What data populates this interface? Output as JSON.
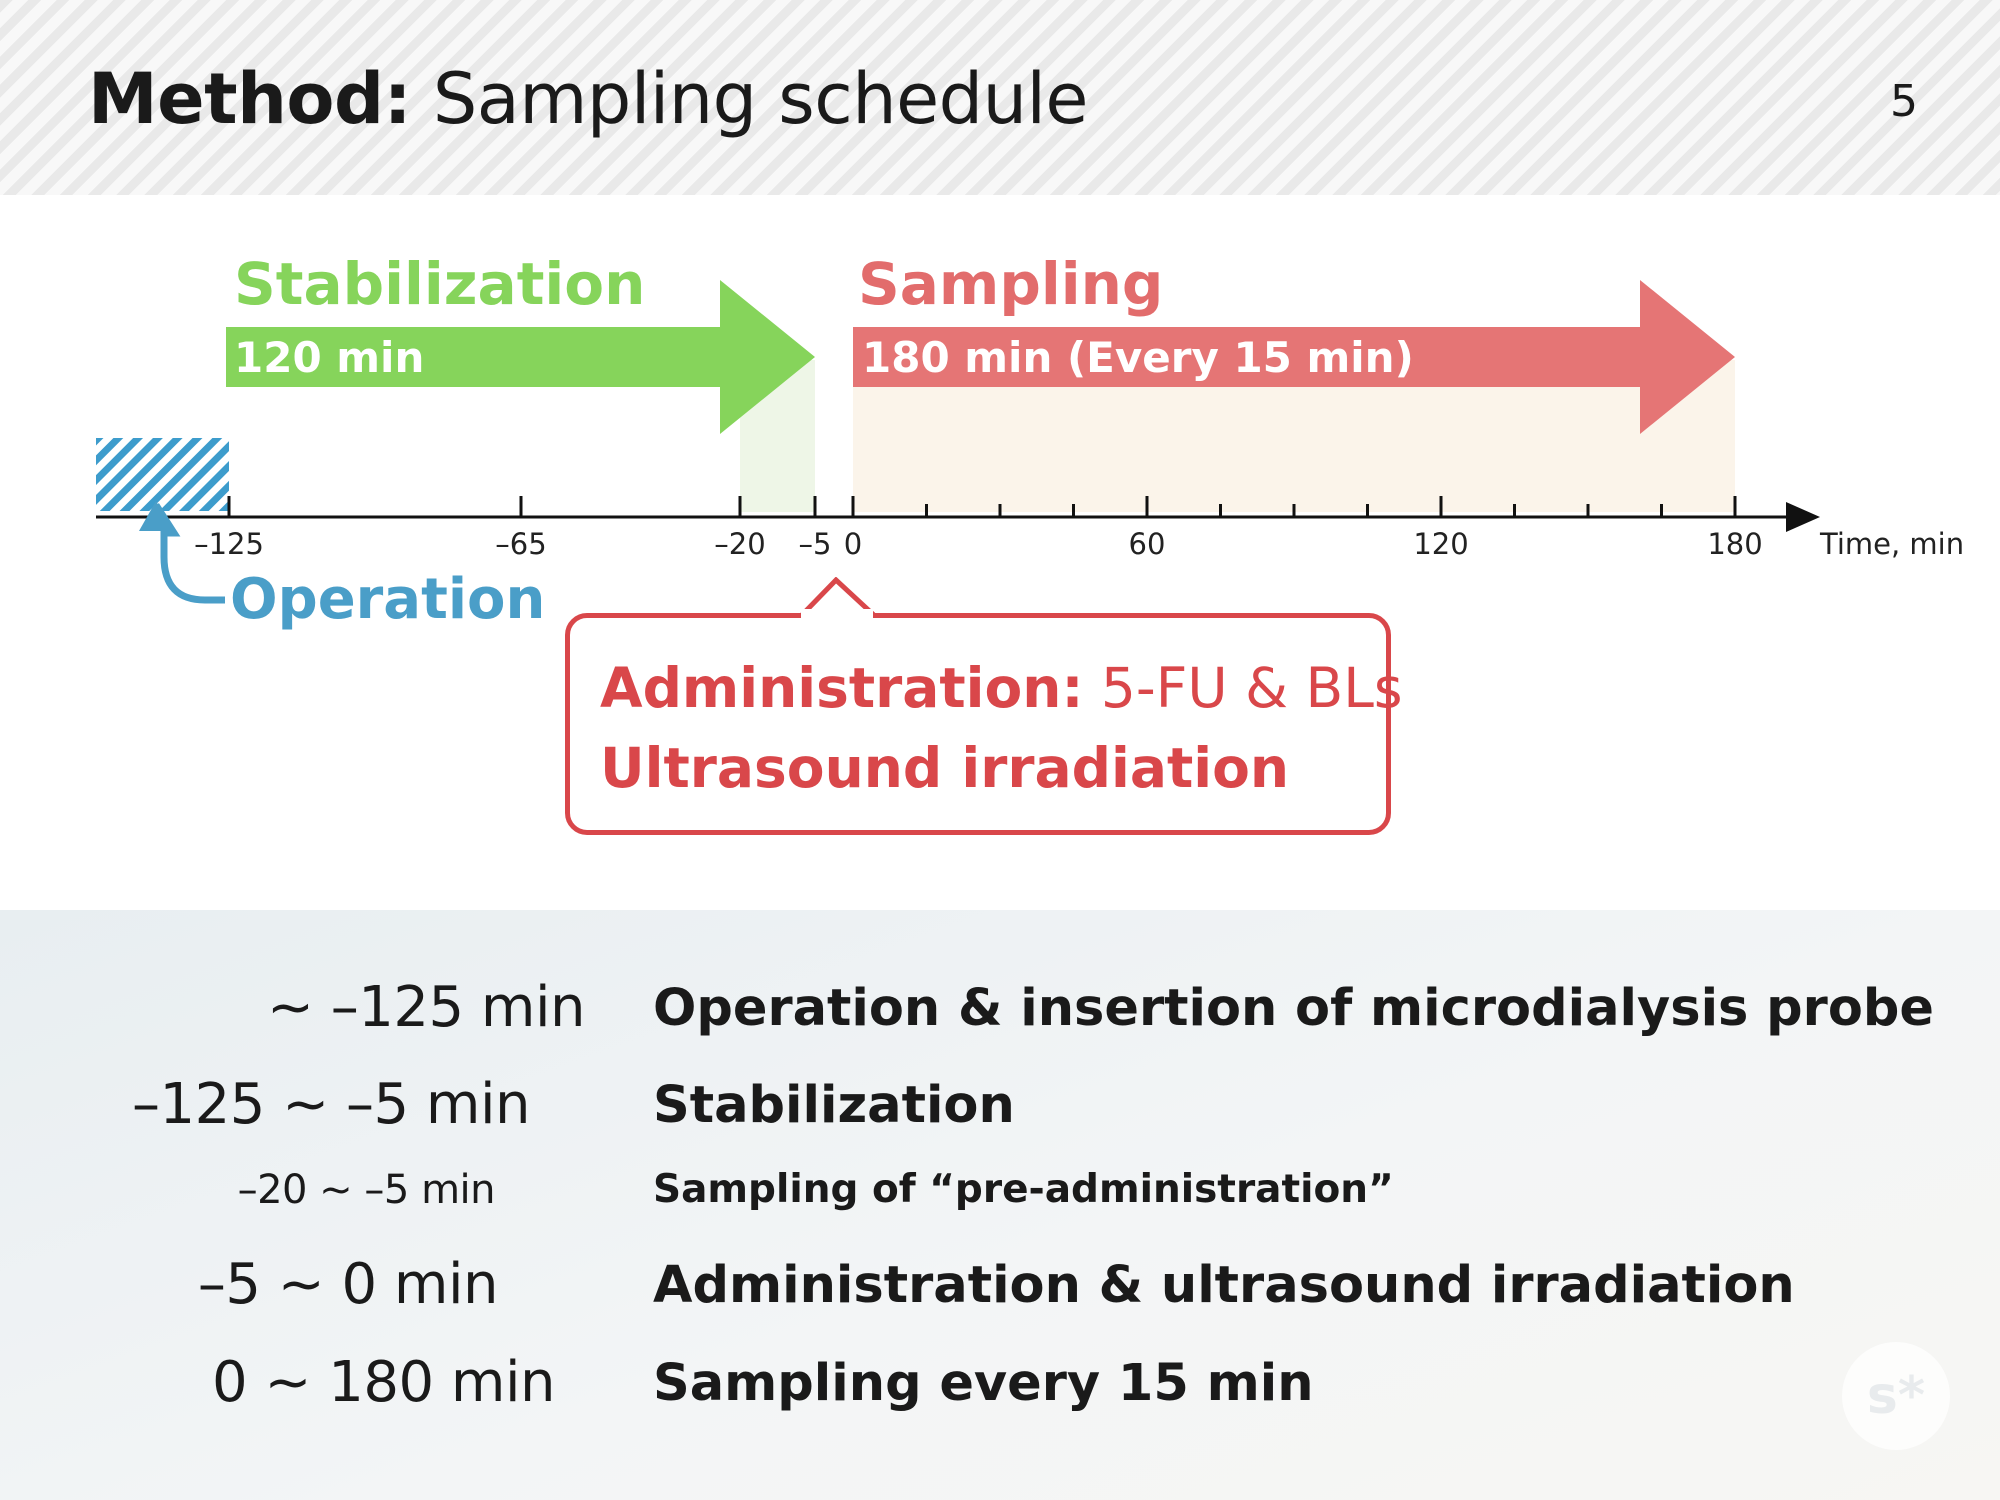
{
  "header": {
    "title_bold": "Method:",
    "title_rest": " Sampling schedule",
    "page_number": "5"
  },
  "colors": {
    "stabilization": "#86d45b",
    "sampling": "#e57575",
    "sampling_title": "#e26c6c",
    "operation": "#4a9ec8",
    "callout": "#d9474a",
    "shade_green": "#eef6e7",
    "shade_sampling": "#fbf4ea"
  },
  "timeline": {
    "stabilization": {
      "title": "Stabilization",
      "label": "120 min",
      "start": -125,
      "end": -5
    },
    "sampling": {
      "title": "Sampling",
      "label": "180 min (Every 15 min)",
      "start": 0,
      "end": 180,
      "interval": 15
    },
    "operation_label": "Operation",
    "axis_label": "Time, min",
    "ticks": [
      {
        "value": -125,
        "label": "–125"
      },
      {
        "value": -65,
        "label": "–65"
      },
      {
        "value": -20,
        "label": "–20"
      },
      {
        "value": -5,
        "label": "–5"
      },
      {
        "value": 0,
        "label": "0"
      },
      {
        "value": 60,
        "label": "60"
      },
      {
        "value": 120,
        "label": "120"
      },
      {
        "value": 180,
        "label": "180"
      }
    ],
    "callout": {
      "line1_bold": "Administration:",
      "line1_rest": " 5-FU & BLs",
      "line2": "Ultrasound irradiation"
    }
  },
  "schedule": [
    {
      "range": "~ –125 min",
      "description": "Operation & insertion of microdialysis probe"
    },
    {
      "range": "–125 ~ –5 min",
      "description": "Stabilization"
    },
    {
      "range": "–20 ~ –5 min",
      "description": "Sampling of “pre-administration”"
    },
    {
      "range": "–5 ~ 0 min",
      "description": "Administration & ultrasound irradiation"
    },
    {
      "range": "0 ~ 180 min",
      "description": "Sampling every 15 min"
    }
  ],
  "logo_text": "s*"
}
